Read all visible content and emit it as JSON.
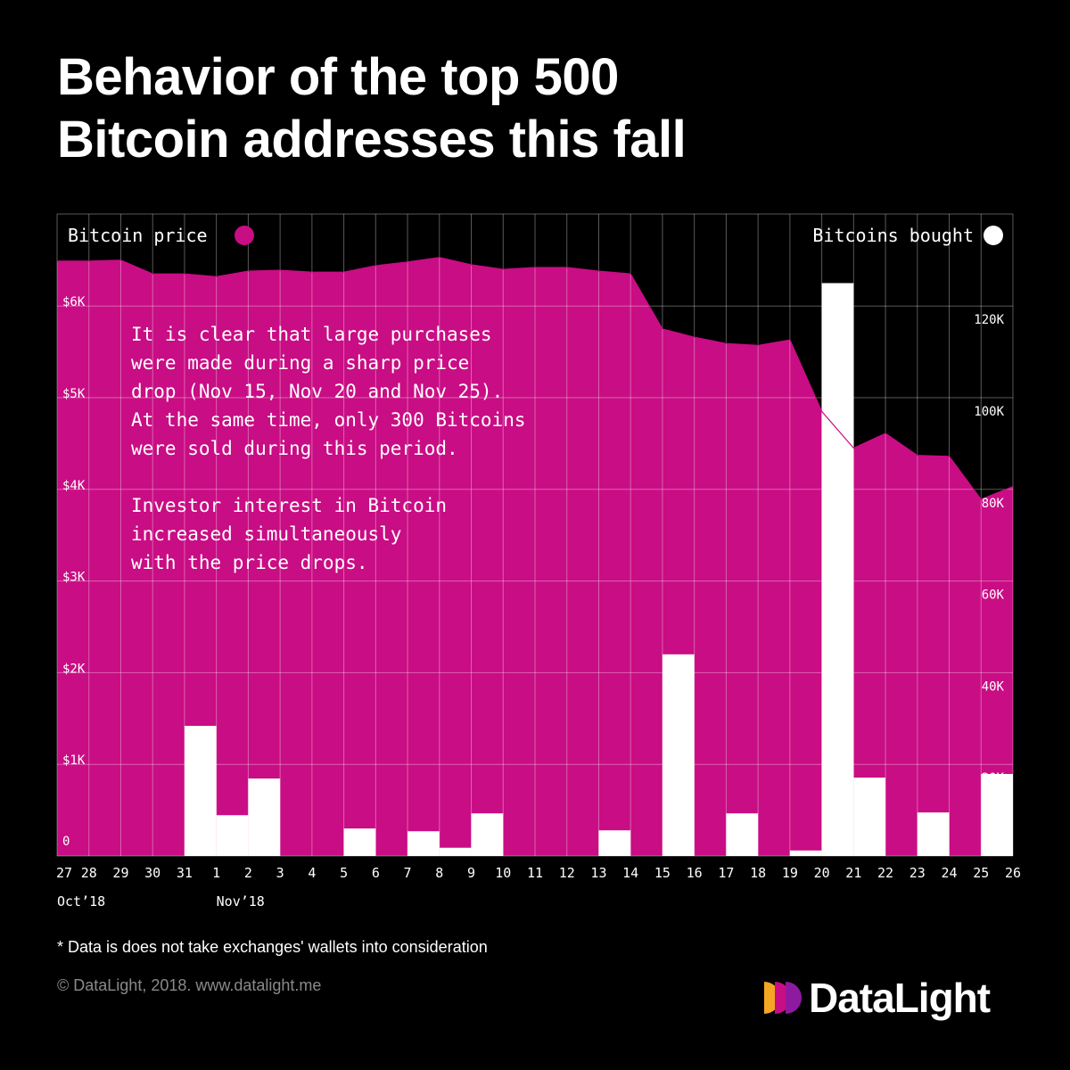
{
  "title_lines": [
    "Behavior of the top 500",
    "Bitcoin addresses this fall"
  ],
  "colors": {
    "price": "#c90d84",
    "bought": "#ffffff",
    "background": "#000000"
  },
  "chart_data": {
    "type": "bar+area",
    "x_tick_labels": [
      "27",
      "28",
      "29",
      "30",
      "31",
      "1",
      "2",
      "3",
      "4",
      "5",
      "6",
      "7",
      "8",
      "9",
      "10",
      "11",
      "12",
      "13",
      "14",
      "15",
      "16",
      "17",
      "18",
      "19",
      "20",
      "21",
      "22",
      "23",
      "24",
      "25",
      "26"
    ],
    "x_month_labels": [
      {
        "at": "27",
        "label": "Oct’18"
      },
      {
        "at": "1",
        "label": "Nov’18"
      }
    ],
    "legend": {
      "left": "Bitcoin price",
      "right": "Bitcoins bought"
    },
    "price_series": {
      "name": "Bitcoin price",
      "axis": "left",
      "dates": [
        "Oct 27",
        "Oct 28",
        "Oct 29",
        "Oct 30",
        "Oct 31",
        "Nov 1",
        "Nov 2",
        "Nov 3",
        "Nov 4",
        "Nov 5",
        "Nov 6",
        "Nov 7",
        "Nov 8",
        "Nov 9",
        "Nov 10",
        "Nov 11",
        "Nov 12",
        "Nov 13",
        "Nov 14",
        "Nov 15",
        "Nov 16",
        "Nov 17",
        "Nov 18",
        "Nov 19",
        "Nov 20",
        "Nov 21",
        "Nov 22",
        "Nov 23",
        "Nov 24",
        "Nov 25",
        "Nov 26"
      ],
      "values": [
        6490,
        6490,
        6500,
        6350,
        6350,
        6320,
        6380,
        6390,
        6370,
        6370,
        6440,
        6480,
        6530,
        6450,
        6400,
        6420,
        6420,
        6380,
        6350,
        5750,
        5660,
        5590,
        5570,
        5630,
        4850,
        4450,
        4610,
        4370,
        4360,
        3890,
        4030
      ]
    },
    "bought_series": {
      "name": "Bitcoins bought",
      "axis": "right",
      "days": [
        "Oct 27",
        "Oct 28",
        "Oct 29",
        "Oct 30",
        "Oct 31",
        "Nov 1",
        "Nov 2",
        "Nov 3",
        "Nov 4",
        "Nov 5",
        "Nov 6",
        "Nov 7",
        "Nov 8",
        "Nov 9",
        "Nov 10",
        "Nov 11",
        "Nov 12",
        "Nov 13",
        "Nov 14",
        "Nov 15",
        "Nov 16",
        "Nov 17",
        "Nov 18",
        "Nov 19",
        "Nov 20",
        "Nov 21",
        "Nov 22",
        "Nov 23",
        "Nov 24",
        "Nov 25"
      ],
      "values": [
        0,
        0,
        0,
        0,
        28400,
        8900,
        16900,
        0,
        0,
        6000,
        0,
        5400,
        1800,
        9300,
        0,
        0,
        0,
        5600,
        0,
        44000,
        0,
        9300,
        0,
        1200,
        125000,
        17100,
        0,
        9500,
        0,
        17900
      ]
    },
    "left_axis": {
      "ticks": [
        "0",
        "$1K",
        "$2K",
        "$3K",
        "$4K",
        "$5K",
        "$6K"
      ],
      "range": [
        0,
        7000
      ]
    },
    "right_axis": {
      "ticks": [
        "20K",
        "40K",
        "60K",
        "80K",
        "100K",
        "120K"
      ],
      "range": [
        0,
        140000
      ]
    },
    "grid": true,
    "annotation_lines": [
      "It is clear that large purchases",
      "were made during a sharp price",
      "drop (Nov 15, Nov 20 and Nov 25).",
      "At the same time, only 300 Bitcoins",
      "were sold during this period.",
      "",
      "Investor interest in Bitcoin",
      "increased simultaneously",
      "with the price drops."
    ]
  },
  "footnote": "* Data is does not take exchanges' wallets into consideration",
  "copyright": "© DataLight, 2018. www.datalight.me",
  "logo": {
    "text": "DataLight",
    "colors": [
      "#f5a623",
      "#c90d84",
      "#8e1aa0"
    ]
  }
}
